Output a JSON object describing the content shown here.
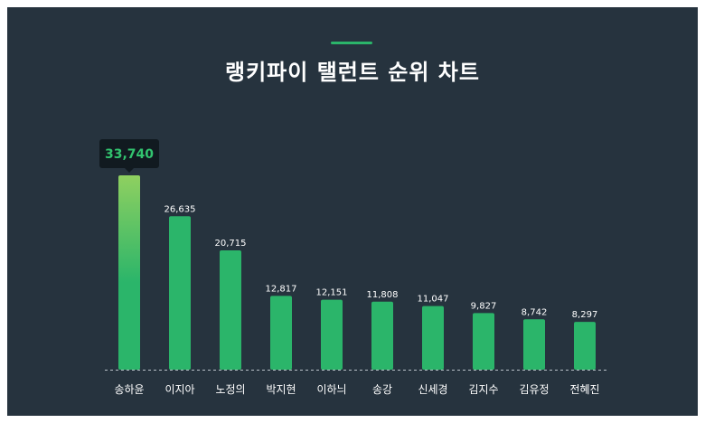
{
  "title": "랭키파이 탤런트 순위 차트",
  "colors": {
    "background": "#26333e",
    "bar": "#2bb56a",
    "bar_top_highlight": "#8fd060",
    "accent": "#2bb56a",
    "tooltip_bg": "#111a20",
    "tooltip_text": "#32c46f",
    "label_text": "#ffffff"
  },
  "tooltip": {
    "value": "33,740"
  },
  "chart_data": {
    "type": "bar",
    "title": "랭키파이 탤런트 순위 차트",
    "categories": [
      "송하윤",
      "이지아",
      "노정의",
      "박지현",
      "이하늬",
      "송강",
      "신세경",
      "김지수",
      "김유정",
      "전혜진"
    ],
    "values": [
      33740,
      26635,
      20715,
      12817,
      12151,
      11808,
      11047,
      9827,
      8742,
      8297
    ],
    "value_labels": [
      "33,740",
      "26,635",
      "20,715",
      "12,817",
      "12,151",
      "11,808",
      "11,047",
      "9,827",
      "8,742",
      "8,297"
    ],
    "xlabel": "",
    "ylabel": "",
    "ylim": [
      0,
      33740
    ],
    "grid": false,
    "legend": "none"
  }
}
